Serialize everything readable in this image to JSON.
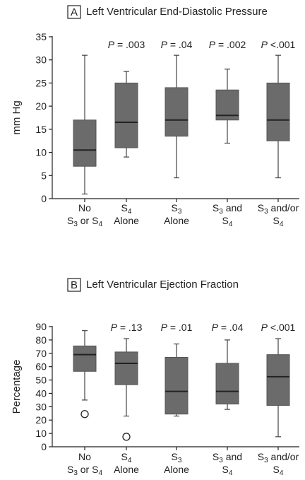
{
  "chart_data": [
    {
      "type": "boxplot",
      "panel_letter": "A",
      "title": "Left Ventricular End-Diastolic Pressure",
      "ylabel": "mm Hg",
      "ylim": [
        0,
        35
      ],
      "yticks": [
        "0",
        "5",
        "10",
        "15",
        "20",
        "25",
        "30",
        "35"
      ],
      "categories": [
        {
          "line1": [
            {
              "t": "No"
            }
          ],
          "line2": [
            {
              "t": "S"
            },
            {
              "t": "3",
              "sub": true
            },
            {
              "t": " or S"
            },
            {
              "t": "4",
              "sub": true
            }
          ]
        },
        {
          "line1": [
            {
              "t": "S"
            },
            {
              "t": "4",
              "sub": true
            }
          ],
          "line2": [
            {
              "t": "Alone"
            }
          ]
        },
        {
          "line1": [
            {
              "t": "S"
            },
            {
              "t": "3",
              "sub": true
            }
          ],
          "line2": [
            {
              "t": "Alone"
            }
          ]
        },
        {
          "line1": [
            {
              "t": "S"
            },
            {
              "t": "3",
              "sub": true
            },
            {
              "t": " and"
            }
          ],
          "line2": [
            {
              "t": "S"
            },
            {
              "t": "4",
              "sub": true
            }
          ]
        },
        {
          "line1": [
            {
              "t": "S"
            },
            {
              "t": "3",
              "sub": true
            },
            {
              "t": " and/or"
            }
          ],
          "line2": [
            {
              "t": "S"
            },
            {
              "t": "4",
              "sub": true
            }
          ]
        }
      ],
      "p_values": [
        null,
        {
          "prefix": "P",
          "rest": " = .003"
        },
        {
          "prefix": "P",
          "rest": " = .04"
        },
        {
          "prefix": "P",
          "rest": " = .002"
        },
        {
          "prefix": "P",
          "rest": " <.001"
        }
      ],
      "boxes": [
        {
          "min": 1,
          "q1": 7,
          "median": 10.5,
          "q3": 17,
          "max": 31,
          "outliers": []
        },
        {
          "min": 9,
          "q1": 11,
          "median": 16.5,
          "q3": 25,
          "max": 27.5,
          "outliers": []
        },
        {
          "min": 4.5,
          "q1": 13.5,
          "median": 17,
          "q3": 24,
          "max": 31,
          "outliers": []
        },
        {
          "min": 12,
          "q1": 17,
          "median": 18,
          "q3": 23.5,
          "max": 28,
          "outliers": []
        },
        {
          "min": 4.5,
          "q1": 12.5,
          "median": 17,
          "q3": 25,
          "max": 31,
          "outliers": []
        }
      ]
    },
    {
      "type": "boxplot",
      "panel_letter": "B",
      "title": "Left Ventricular Ejection Fraction",
      "ylabel": "Percentage",
      "ylim": [
        0,
        90
      ],
      "yticks": [
        "0",
        "10",
        "20",
        "30",
        "40",
        "50",
        "60",
        "70",
        "80",
        "90"
      ],
      "categories": [
        {
          "line1": [
            {
              "t": "No"
            }
          ],
          "line2": [
            {
              "t": "S"
            },
            {
              "t": "3",
              "sub": true
            },
            {
              "t": " or S"
            },
            {
              "t": "4",
              "sub": true
            }
          ]
        },
        {
          "line1": [
            {
              "t": "S"
            },
            {
              "t": "4",
              "sub": true
            }
          ],
          "line2": [
            {
              "t": "Alone"
            }
          ]
        },
        {
          "line1": [
            {
              "t": "S"
            },
            {
              "t": "3",
              "sub": true
            }
          ],
          "line2": [
            {
              "t": "Alone"
            }
          ]
        },
        {
          "line1": [
            {
              "t": "S"
            },
            {
              "t": "3",
              "sub": true
            },
            {
              "t": " and"
            }
          ],
          "line2": [
            {
              "t": "S"
            },
            {
              "t": "4",
              "sub": true
            }
          ]
        },
        {
          "line1": [
            {
              "t": "S"
            },
            {
              "t": "3",
              "sub": true
            },
            {
              "t": " and/or"
            }
          ],
          "line2": [
            {
              "t": "S"
            },
            {
              "t": "4",
              "sub": true
            }
          ]
        }
      ],
      "p_values": [
        null,
        {
          "prefix": "P",
          "rest": " = .13"
        },
        {
          "prefix": "P",
          "rest": " = .01"
        },
        {
          "prefix": "P",
          "rest": " = .04"
        },
        {
          "prefix": "P",
          "rest": " <.001"
        }
      ],
      "boxes": [
        {
          "min": 35,
          "q1": 56.5,
          "median": 69,
          "q3": 75.5,
          "max": 87,
          "outliers": [
            24.5
          ]
        },
        {
          "min": 23,
          "q1": 46.5,
          "median": 62.5,
          "q3": 71,
          "max": 81,
          "outliers": [
            7.5
          ]
        },
        {
          "min": 23,
          "q1": 24.5,
          "median": 41.5,
          "q3": 67,
          "max": 77,
          "outliers": []
        },
        {
          "min": 28,
          "q1": 32,
          "median": 41.5,
          "q3": 62.5,
          "max": 80,
          "outliers": []
        },
        {
          "min": 7.5,
          "q1": 31,
          "median": 52.5,
          "q3": 69,
          "max": 81,
          "outliers": []
        }
      ]
    }
  ]
}
